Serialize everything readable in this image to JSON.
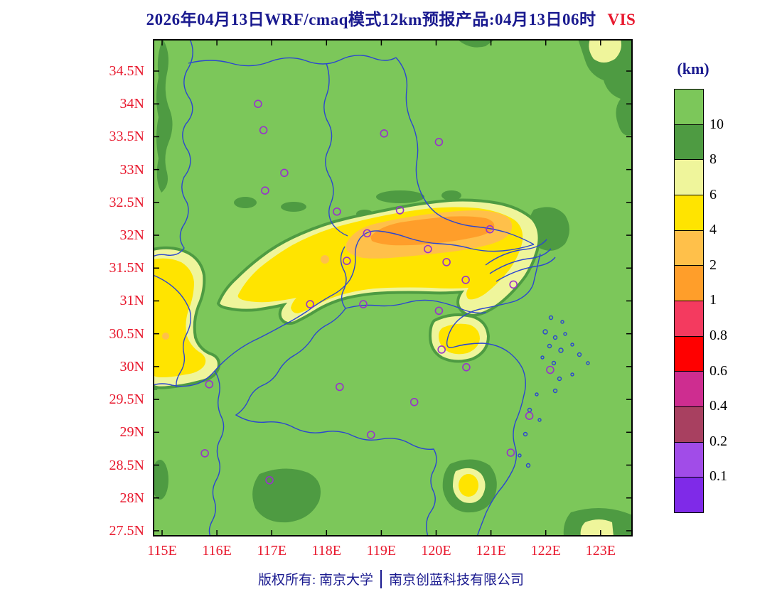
{
  "title": {
    "main": "2026年04月13日WRF/cmaq模式12km预报产品:04月13日06时",
    "tag": "VIS"
  },
  "colorbar": {
    "unit": "(km)",
    "labels": [
      "10",
      "8",
      "6",
      "4",
      "2",
      "1",
      "0.8",
      "0.6",
      "0.4",
      "0.2",
      "0.1"
    ],
    "colors": [
      "#7CC75A",
      "#4E9B42",
      "#EFF59B",
      "#FFE400",
      "#FFC04A",
      "#FF9E2A",
      "#F43A5F",
      "#FF0000",
      "#CE2D90",
      "#A84060",
      "#A14CE8",
      "#7F2AE8"
    ]
  },
  "axes": {
    "lat_labels": [
      "34.5N",
      "34N",
      "33.5N",
      "33N",
      "32.5N",
      "32N",
      "31.5N",
      "31N",
      "30.5N",
      "30N",
      "29.5N",
      "29N",
      "28.5N",
      "28N",
      "27.5N"
    ],
    "lon_labels": [
      "115E",
      "116E",
      "117E",
      "118E",
      "119E",
      "120E",
      "121E",
      "122E",
      "123E"
    ],
    "label_color": "#E8192E"
  },
  "map": {
    "boundary_color": "#2B46D0",
    "station_color": "#9932CC",
    "background_visibility": "greater than 10 km"
  },
  "footer": {
    "owner": "版权所有: 南京大学",
    "company": "南京创蓝科技有限公司"
  },
  "chart_data": {
    "type": "heatmap",
    "title": "2026年04月13日WRF/cmaq模式12km预报产品:04月13日06时 VIS",
    "variable": "visibility (VIS)",
    "unit": "km",
    "model": "WRF/CMAQ 12km",
    "valid_time_label": "04月13日06时",
    "lon_range": [
      115.0,
      123.6
    ],
    "lat_range": [
      27.4,
      35.0
    ],
    "xlabel_ticks": [
      "115E",
      "116E",
      "117E",
      "118E",
      "119E",
      "120E",
      "121E",
      "122E",
      "123E"
    ],
    "ylabel_ticks": [
      "34.5N",
      "34N",
      "33.5N",
      "33N",
      "32.5N",
      "32N",
      "31.5N",
      "31N",
      "30.5N",
      "30N",
      "29.5N",
      "29N",
      "28.5N",
      "28N",
      "27.5N"
    ],
    "legend_levels_km": [
      0.1,
      0.2,
      0.4,
      0.6,
      0.8,
      1,
      2,
      4,
      6,
      8,
      10
    ],
    "legend_position": "right",
    "grid": false,
    "regions": [
      {
        "visibility_km": ">10",
        "description": "background over most of the domain"
      },
      {
        "visibility_km": "8-10",
        "description": "rims around low-visibility areas, NE corner patch, strip near 115.2E 33.5-35N, scattered blobs near 32.3N, patches near bottom edge 28N"
      },
      {
        "visibility_km": "6-8",
        "description": "outer edge of the main WSW-ENE band ~30.9-32.3N from 116.3E to 122E; patch 115-116E 30.3-31.6N; patch 120-121E 30.2-30.8N; small patch ~28.3N 120.6E"
      },
      {
        "visibility_km": "4-6",
        "description": "interior of the main band and of the western patch"
      },
      {
        "visibility_km": "2-4",
        "description": "elongated core ~31.6-32.2N from 118.3E to 121.4E"
      },
      {
        "visibility_km": "1-2",
        "description": "innermost core ~31.8-32.1N from 118.8E to 121.1E"
      }
    ],
    "stations": [
      {
        "lon": 116.75,
        "lat": 34.0
      },
      {
        "lon": 116.85,
        "lat": 33.6
      },
      {
        "lon": 119.05,
        "lat": 33.55
      },
      {
        "lon": 120.05,
        "lat": 33.42
      },
      {
        "lon": 117.23,
        "lat": 32.95
      },
      {
        "lon": 116.88,
        "lat": 32.68
      },
      {
        "lon": 118.19,
        "lat": 32.36
      },
      {
        "lon": 119.34,
        "lat": 32.38
      },
      {
        "lon": 118.74,
        "lat": 32.03
      },
      {
        "lon": 120.98,
        "lat": 32.09
      },
      {
        "lon": 119.85,
        "lat": 31.79
      },
      {
        "lon": 118.37,
        "lat": 31.61
      },
      {
        "lon": 120.19,
        "lat": 31.59
      },
      {
        "lon": 120.54,
        "lat": 31.32
      },
      {
        "lon": 121.41,
        "lat": 31.25
      },
      {
        "lon": 117.7,
        "lat": 30.95
      },
      {
        "lon": 118.67,
        "lat": 30.95
      },
      {
        "lon": 120.05,
        "lat": 30.85
      },
      {
        "lon": 120.1,
        "lat": 30.26
      },
      {
        "lon": 120.55,
        "lat": 29.99
      },
      {
        "lon": 122.08,
        "lat": 29.95
      },
      {
        "lon": 115.86,
        "lat": 29.73
      },
      {
        "lon": 118.24,
        "lat": 29.69
      },
      {
        "lon": 119.6,
        "lat": 29.46
      },
      {
        "lon": 121.7,
        "lat": 29.25
      },
      {
        "lon": 118.81,
        "lat": 28.96
      },
      {
        "lon": 115.78,
        "lat": 28.68
      },
      {
        "lon": 121.36,
        "lat": 28.69
      },
      {
        "lon": 116.96,
        "lat": 28.27
      }
    ]
  }
}
